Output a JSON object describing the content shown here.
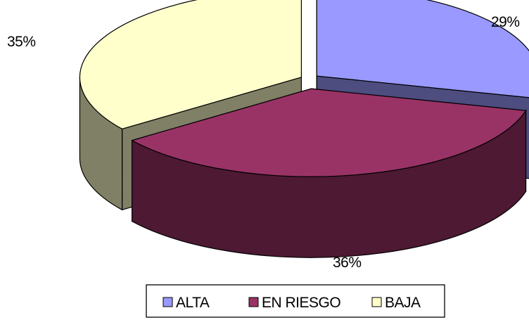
{
  "chart_data": {
    "type": "pie",
    "style": "3d-exploded",
    "categories": [
      "ALTA",
      "EN RIESGO",
      "BAJA"
    ],
    "values": [
      29,
      36,
      35
    ],
    "value_labels": [
      "29%",
      "36%",
      "35%"
    ],
    "colors": {
      "ALTA": {
        "top": "#9999ff",
        "side": "#4d4d80"
      },
      "EN RIESGO": {
        "top": "#993366",
        "side": "#4d1933"
      },
      "BAJA": {
        "top": "#ffffcc",
        "side": "#808066"
      }
    },
    "legend": {
      "placement": "bottom",
      "items": [
        {
          "label": "ALTA",
          "color": "#9999ff"
        },
        {
          "label": "EN RIESGO",
          "color": "#993366"
        },
        {
          "label": "BAJA",
          "color": "#ffffcc"
        }
      ]
    }
  }
}
